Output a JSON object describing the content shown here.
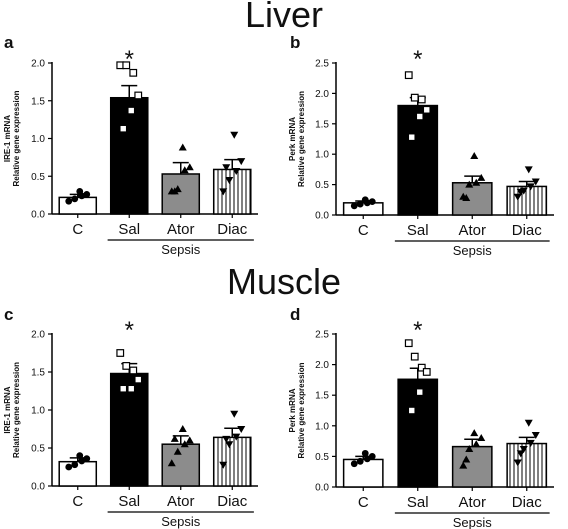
{
  "sections": {
    "top": "Liver",
    "bottom": "Muscle"
  },
  "chart_data": [
    {
      "type": "bar",
      "panel": "a",
      "ylabel": [
        "IRE-1 mRNA",
        "Relative gene expression"
      ],
      "categories": [
        "C",
        "Sal",
        "Ator",
        "Diac"
      ],
      "group_label": "Sepsis",
      "ylim": [
        0,
        2.0
      ],
      "yticks": [
        "0.0",
        "0.5",
        "1.0",
        "1.5",
        "2.0"
      ],
      "values": [
        0.22,
        1.54,
        0.53,
        0.59
      ],
      "errors": [
        0.04,
        0.16,
        0.15,
        0.13
      ],
      "points": [
        [
          0.17,
          0.2,
          0.24,
          0.26,
          0.3
        ],
        [
          1.97,
          1.97,
          1.87,
          1.57,
          1.37,
          1.13
        ],
        [
          0.3,
          0.33,
          0.58,
          0.62,
          0.88,
          0.3
        ],
        [
          0.3,
          0.45,
          0.57,
          0.7,
          1.05,
          0.62
        ]
      ],
      "significance": [
        "",
        "*",
        "",
        ""
      ],
      "colors": [
        "#ffffff",
        "#000000",
        "#8c8c8c",
        "#ffffff"
      ],
      "hatched": [
        false,
        false,
        false,
        true
      ]
    },
    {
      "type": "bar",
      "panel": "b",
      "ylabel": [
        "Perk mRNA",
        "Relative gene expression"
      ],
      "categories": [
        "C",
        "Sal",
        "Ator",
        "Diac"
      ],
      "group_label": "Sepsis",
      "ylim": [
        0,
        2.5
      ],
      "yticks": [
        "0.0",
        "0.5",
        "1.0",
        "1.5",
        "2.0",
        "2.5"
      ],
      "values": [
        0.2,
        1.8,
        0.53,
        0.47
      ],
      "errors": [
        0.03,
        0.13,
        0.11,
        0.08
      ],
      "points": [
        [
          0.15,
          0.18,
          0.2,
          0.22,
          0.25
        ],
        [
          2.3,
          1.93,
          1.9,
          1.73,
          1.62,
          1.28
        ],
        [
          0.3,
          0.5,
          0.53,
          0.61,
          0.97,
          0.28
        ],
        [
          0.3,
          0.4,
          0.47,
          0.55,
          0.75,
          0.38
        ]
      ],
      "significance": [
        "",
        "*",
        "",
        ""
      ],
      "colors": [
        "#ffffff",
        "#000000",
        "#8c8c8c",
        "#ffffff"
      ],
      "hatched": [
        false,
        false,
        false,
        true
      ]
    },
    {
      "type": "bar",
      "panel": "c",
      "ylabel": [
        "IRE-1 mRNA",
        "Relative gene expression"
      ],
      "categories": [
        "C",
        "Sal",
        "Ator",
        "Diac"
      ],
      "group_label": "Sepsis",
      "ylim": [
        0,
        2.0
      ],
      "yticks": [
        "0.0",
        "0.5",
        "1.0",
        "1.5",
        "2.0"
      ],
      "values": [
        0.32,
        1.48,
        0.55,
        0.64
      ],
      "errors": [
        0.05,
        0.13,
        0.11,
        0.12
      ],
      "points": [
        [
          0.25,
          0.28,
          0.33,
          0.36,
          0.4
        ],
        [
          1.75,
          1.58,
          1.52,
          1.4,
          1.28,
          1.28
        ],
        [
          0.3,
          0.45,
          0.55,
          0.6,
          0.75,
          0.62
        ],
        [
          0.28,
          0.55,
          0.65,
          0.75,
          0.95,
          0.62
        ]
      ],
      "significance": [
        "",
        "*",
        "",
        ""
      ],
      "colors": [
        "#ffffff",
        "#000000",
        "#8c8c8c",
        "#ffffff"
      ],
      "hatched": [
        false,
        false,
        false,
        true
      ]
    },
    {
      "type": "bar",
      "panel": "d",
      "ylabel": [
        "Perk mRNA",
        "Relative gene expression"
      ],
      "categories": [
        "C",
        "Sal",
        "Ator",
        "Diac"
      ],
      "group_label": "Sepsis",
      "ylim": [
        0,
        2.5
      ],
      "yticks": [
        "0.0",
        "0.5",
        "1.0",
        "1.5",
        "2.0",
        "2.5"
      ],
      "values": [
        0.45,
        1.76,
        0.66,
        0.71
      ],
      "errors": [
        0.05,
        0.18,
        0.12,
        0.1
      ],
      "points": [
        [
          0.38,
          0.42,
          0.46,
          0.5,
          0.55
        ],
        [
          2.35,
          2.13,
          1.95,
          1.88,
          1.55,
          1.25
        ],
        [
          0.35,
          0.62,
          0.7,
          0.8,
          0.88,
          0.45
        ],
        [
          0.4,
          0.62,
          0.72,
          0.85,
          1.05,
          0.55
        ]
      ],
      "significance": [
        "",
        "*",
        "",
        ""
      ],
      "colors": [
        "#ffffff",
        "#000000",
        "#8c8c8c",
        "#ffffff"
      ],
      "hatched": [
        false,
        false,
        false,
        true
      ]
    }
  ]
}
